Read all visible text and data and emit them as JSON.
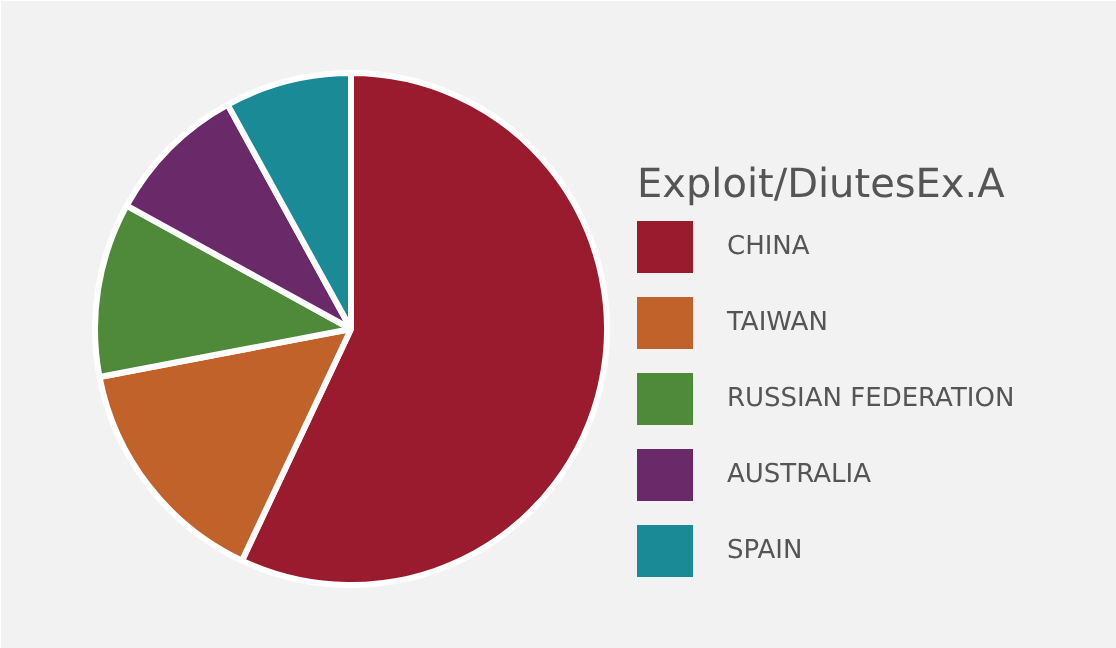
{
  "chart_data": {
    "type": "pie",
    "title": "Exploit/DiutesEx.A",
    "categories": [
      "CHINA",
      "TAIWAN",
      "RUSSIAN FEDERATION",
      "AUSTRALIA",
      "SPAIN"
    ],
    "values": [
      57,
      15,
      11,
      9,
      8
    ],
    "colors": [
      "#9b1b2e",
      "#c0622a",
      "#4e8a3a",
      "#6a2a6a",
      "#1a8a96"
    ],
    "legend": "right"
  }
}
